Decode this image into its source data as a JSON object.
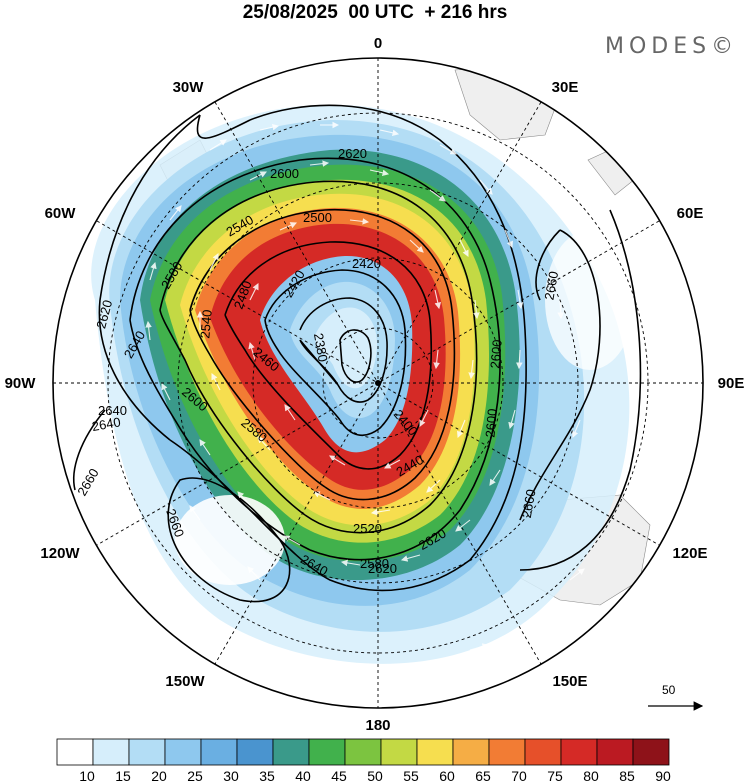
{
  "header": {
    "title": "25/08/2025  00 UTC  + 216 hrs",
    "brand": "MODES©"
  },
  "map": {
    "projection": "south polar stereographic",
    "longitude_labels": {
      "top": "0",
      "top_right": "30E",
      "right_upper": "60E",
      "right": "90E",
      "right_lower": "120E",
      "bottom_right": "150E",
      "bottom": "180",
      "bottom_left": "150W",
      "left_lower": "120W",
      "left": "90W",
      "left_upper": "60W",
      "top_left": "30W"
    },
    "contour_labels": [
      "2620",
      "2600",
      "2540",
      "2500",
      "2420",
      "2420",
      "2580",
      "2480",
      "2540",
      "2660",
      "2620",
      "2640",
      "2460",
      "2380",
      "2600",
      "2400",
      "2640",
      "2600",
      "2660",
      "2660",
      "2580",
      "2440",
      "2520",
      "2620",
      "2600",
      "2580",
      "2640",
      "2620",
      "2640",
      "2660"
    ],
    "vector_scale_label": "50",
    "vector_scale_unit_note": ""
  },
  "legend": {
    "ticks": [
      "10",
      "15",
      "20",
      "25",
      "30",
      "35",
      "40",
      "45",
      "50",
      "55",
      "60",
      "65",
      "70",
      "75",
      "80",
      "85",
      "90"
    ],
    "colors": [
      "#ffffff",
      "#d6eefb",
      "#b3ddf5",
      "#8ec8ee",
      "#6aafe2",
      "#4a94cf",
      "#3a9a8a",
      "#41b14c",
      "#7cc440",
      "#c3d944",
      "#f6de4f",
      "#f5ad45",
      "#f27c34",
      "#e6502a",
      "#d52a26",
      "#bb1a22",
      "#8e1219"
    ]
  }
}
